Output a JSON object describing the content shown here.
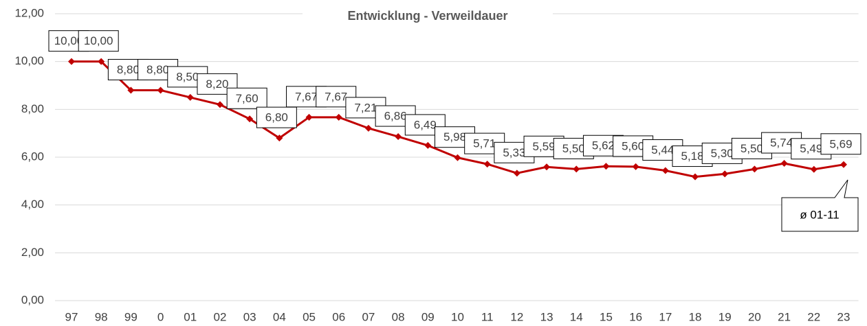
{
  "chart_data": {
    "type": "line",
    "title": "Entwicklung - Verweildauer",
    "categories": [
      "97",
      "98",
      "99",
      "0",
      "01",
      "02",
      "03",
      "04",
      "05",
      "06",
      "07",
      "08",
      "09",
      "10",
      "11",
      "12",
      "13",
      "14",
      "15",
      "16",
      "17",
      "18",
      "19",
      "20",
      "21",
      "22",
      "23"
    ],
    "series": [
      {
        "name": "Verweildauer",
        "color": "#c00000",
        "values": [
          10.0,
          10.0,
          8.8,
          8.8,
          8.5,
          8.2,
          7.6,
          6.8,
          7.67,
          7.67,
          7.21,
          6.86,
          6.49,
          5.98,
          5.71,
          5.33,
          5.59,
          5.5,
          5.62,
          5.6,
          5.44,
          5.18,
          5.3,
          5.5,
          5.74,
          5.49,
          5.69
        ],
        "value_labels": [
          "10,00",
          "10,00",
          "8,80",
          "8,80",
          "8,50",
          "8,20",
          "7,60",
          "6,80",
          "7,67",
          "7,67",
          "7,21",
          "6,86",
          "6,49",
          "5,98",
          "5,71",
          "5,33",
          "5,59",
          "5,50",
          "5,62",
          "5,60",
          "5,44",
          "5,18",
          "5,30",
          "5,50",
          "5,74",
          "5,49",
          "5,69"
        ]
      }
    ],
    "ylim": [
      0,
      12
    ],
    "yticks": [
      {
        "value": 0,
        "label": "0,00"
      },
      {
        "value": 2,
        "label": "2,00"
      },
      {
        "value": 4,
        "label": "4,00"
      },
      {
        "value": 6,
        "label": "6,00"
      },
      {
        "value": 8,
        "label": "8,00"
      },
      {
        "value": 10,
        "label": "10,00"
      },
      {
        "value": 12,
        "label": "12,00"
      }
    ],
    "grid": true,
    "annotation": "ø 01-11"
  }
}
